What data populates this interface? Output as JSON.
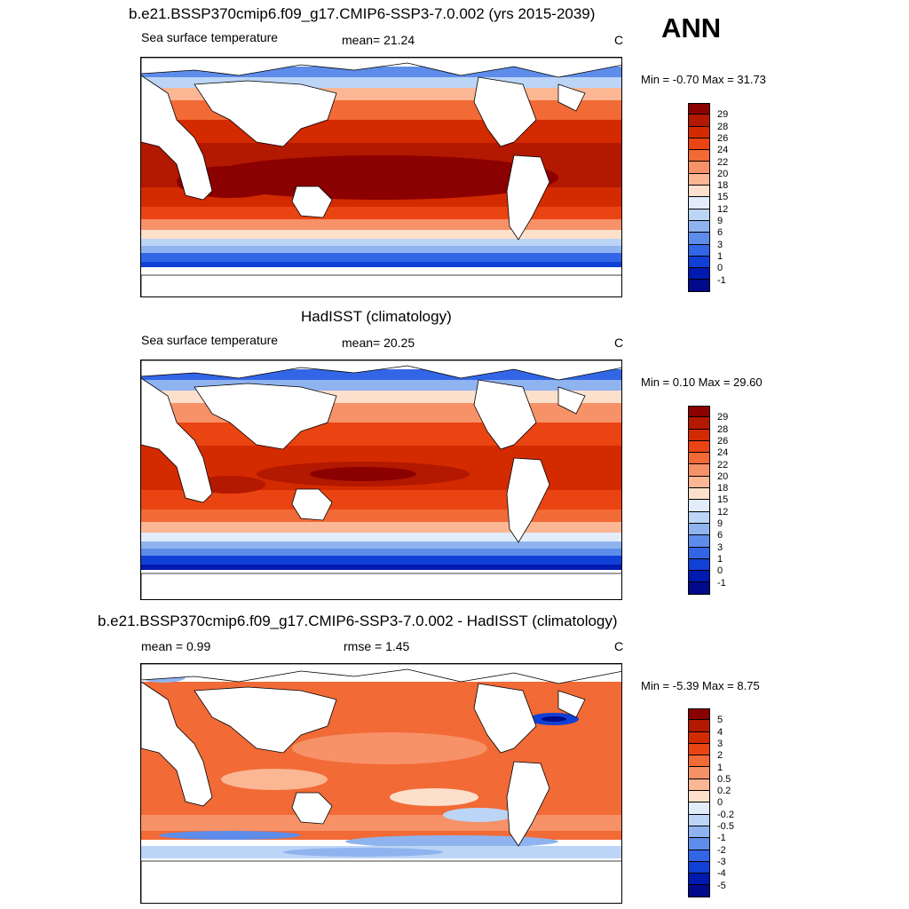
{
  "ann_label": "ANN",
  "panels": [
    {
      "title": "b.e21.BSSP370cmip6.f09_g17.CMIP6-SSP3-7.0.002 (yrs 2015-2039)",
      "left_label": "Sea surface temperature",
      "mid_label": "mean=  21.24",
      "unit": "C",
      "minmax": "Min =  -0.70 Max =  31.73",
      "colorbar": {
        "levels": [
          "29",
          "28",
          "26",
          "24",
          "22",
          "20",
          "18",
          "15",
          "12",
          "9",
          "6",
          "3",
          "1",
          "0",
          "-1"
        ],
        "colors": [
          "#8b0000",
          "#b31800",
          "#d42a00",
          "#ea4412",
          "#f26a36",
          "#f79168",
          "#fbb694",
          "#fde0cc",
          "#e2ecfa",
          "#bcd4f5",
          "#8fb3ef",
          "#5e8cea",
          "#3366e6",
          "#1140d6",
          "#0019b0",
          "#000a8a"
        ]
      }
    },
    {
      "title": "HadISST (climatology)",
      "left_label": "Sea surface temperature",
      "mid_label": "mean=  20.25",
      "unit": "C",
      "minmax": "Min =   0.10 Max =  29.60",
      "colorbar": {
        "levels": [
          "29",
          "28",
          "26",
          "24",
          "22",
          "20",
          "18",
          "15",
          "12",
          "9",
          "6",
          "3",
          "1",
          "0",
          "-1"
        ],
        "colors": [
          "#8b0000",
          "#b31800",
          "#d42a00",
          "#ea4412",
          "#f26a36",
          "#f79168",
          "#fbb694",
          "#fde0cc",
          "#e2ecfa",
          "#bcd4f5",
          "#8fb3ef",
          "#5e8cea",
          "#3366e6",
          "#1140d6",
          "#0019b0",
          "#000a8a"
        ]
      }
    },
    {
      "title": "b.e21.BSSP370cmip6.f09_g17.CMIP6-SSP3-7.0.002 - HadISST (climatology)",
      "left_label": "mean =   0.99",
      "mid_label": "rmse =   1.45",
      "unit": "C",
      "minmax": "Min =  -5.39 Max =   8.75",
      "colorbar": {
        "levels": [
          "5",
          "4",
          "3",
          "2",
          "1",
          "0.5",
          "0.2",
          "0",
          "-0.2",
          "-0.5",
          "-1",
          "-2",
          "-3",
          "-4",
          "-5"
        ],
        "colors": [
          "#8b0000",
          "#b31800",
          "#d42a00",
          "#ea4412",
          "#f26a36",
          "#f79168",
          "#fbb694",
          "#fde0cc",
          "#e2ecfa",
          "#bcd4f5",
          "#8fb3ef",
          "#5e8cea",
          "#3366e6",
          "#1140d6",
          "#0019b0",
          "#000a8a"
        ]
      }
    }
  ]
}
